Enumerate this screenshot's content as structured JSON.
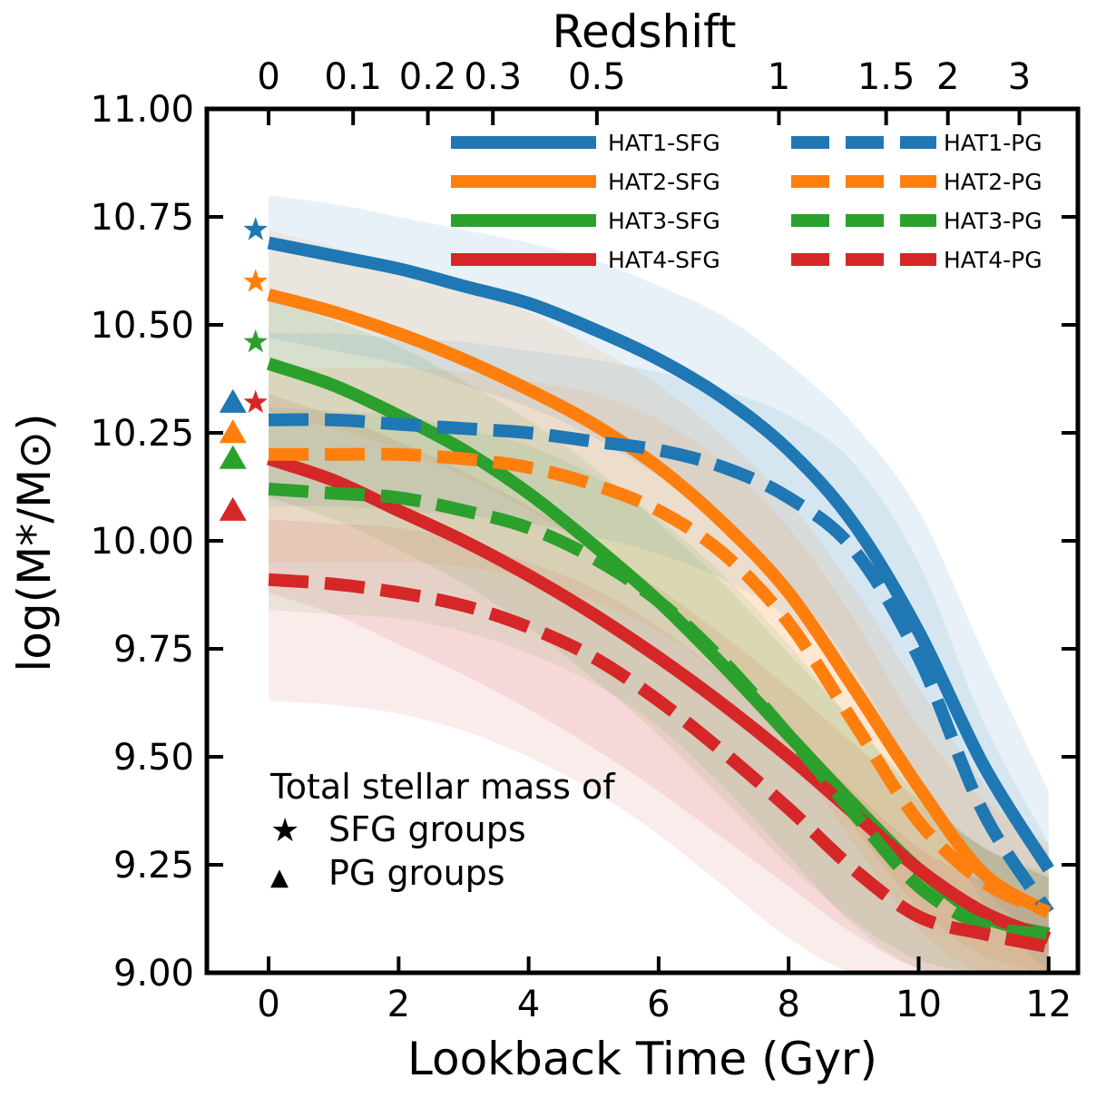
{
  "chart_data": {
    "type": "line",
    "title": "",
    "xlabel": "Lookback Time (Gyr)",
    "ylabel": "log(M*/M⊙)",
    "top_axis_label": "Redshift",
    "xlim": [
      -0.95,
      12.45
    ],
    "ylim": [
      9.0,
      11.0
    ],
    "x_ticks": [
      0,
      2,
      4,
      6,
      8,
      10,
      12
    ],
    "y_ticks": [
      9.0,
      9.25,
      9.5,
      9.75,
      10.0,
      10.25,
      10.5,
      10.75,
      11.0
    ],
    "x_tick_labels": [
      "0",
      "2",
      "4",
      "6",
      "8",
      "10",
      "12"
    ],
    "y_tick_labels": [
      "9.00",
      "9.25",
      "9.50",
      "9.75",
      "10.00",
      "10.25",
      "10.50",
      "10.75",
      "11.00"
    ],
    "top_ticks": [
      {
        "label": "0",
        "t": 0.0
      },
      {
        "label": "0.1",
        "t": 1.3
      },
      {
        "label": "0.2",
        "t": 2.45
      },
      {
        "label": "0.3",
        "t": 3.45
      },
      {
        "label": "0.5",
        "t": 5.05
      },
      {
        "label": "1",
        "t": 7.85
      },
      {
        "label": "1.5",
        "t": 9.5
      },
      {
        "label": "2",
        "t": 10.45
      },
      {
        "label": "3",
        "t": 11.55
      }
    ],
    "grid": false,
    "legend_placement": "top-right",
    "x": [
      0,
      1,
      2,
      3,
      4,
      5,
      6,
      7,
      8,
      9,
      10,
      11,
      12
    ],
    "series": [
      {
        "name": "HAT1-SFG",
        "style": "solid",
        "color": "#1f77b4",
        "values": [
          10.69,
          10.66,
          10.63,
          10.59,
          10.55,
          10.49,
          10.42,
          10.33,
          10.21,
          10.04,
          9.79,
          9.48,
          9.24
        ],
        "band_lower": [
          10.47,
          10.44,
          10.41,
          10.36,
          10.31,
          10.24,
          10.15,
          10.04,
          9.9,
          9.7,
          9.44,
          9.2,
          9.05
        ],
        "band_upper": [
          10.8,
          10.78,
          10.75,
          10.72,
          10.69,
          10.65,
          10.59,
          10.52,
          10.41,
          10.27,
          10.07,
          9.74,
          9.42
        ]
      },
      {
        "name": "HAT2-SFG",
        "style": "solid",
        "color": "#ff7f0e",
        "values": [
          10.57,
          10.53,
          10.48,
          10.42,
          10.35,
          10.27,
          10.17,
          10.04,
          9.88,
          9.66,
          9.43,
          9.23,
          9.14
        ],
        "band_lower": [
          10.3,
          10.26,
          10.21,
          10.15,
          10.07,
          9.98,
          9.86,
          9.72,
          9.54,
          9.34,
          9.15,
          9.04,
          9.0
        ],
        "band_upper": [
          10.72,
          10.68,
          10.64,
          10.59,
          10.53,
          10.45,
          10.36,
          10.24,
          10.09,
          9.89,
          9.66,
          9.44,
          9.28
        ]
      },
      {
        "name": "HAT3-SFG",
        "style": "solid",
        "color": "#2ca02c",
        "values": [
          10.41,
          10.36,
          10.29,
          10.21,
          10.11,
          9.99,
          9.86,
          9.71,
          9.55,
          9.39,
          9.24,
          9.13,
          9.09
        ],
        "band_lower": [
          10.1,
          10.05,
          9.98,
          9.9,
          9.8,
          9.68,
          9.55,
          9.4,
          9.25,
          9.12,
          9.03,
          9.0,
          9.0
        ],
        "band_upper": [
          10.56,
          10.51,
          10.45,
          10.37,
          10.28,
          10.17,
          10.04,
          9.9,
          9.74,
          9.58,
          9.42,
          9.29,
          9.22
        ]
      },
      {
        "name": "HAT4-SFG",
        "style": "solid",
        "color": "#d62728",
        "values": [
          10.19,
          10.14,
          10.07,
          10.0,
          9.92,
          9.83,
          9.73,
          9.62,
          9.5,
          9.37,
          9.24,
          9.14,
          9.08
        ],
        "band_lower": [
          9.88,
          9.83,
          9.76,
          9.69,
          9.61,
          9.52,
          9.42,
          9.31,
          9.2,
          9.09,
          9.01,
          9.0,
          9.0
        ],
        "band_upper": [
          10.34,
          10.29,
          10.23,
          10.16,
          10.08,
          9.99,
          9.89,
          9.78,
          9.66,
          9.53,
          9.4,
          9.29,
          9.22
        ]
      },
      {
        "name": "HAT1-PG",
        "style": "dashed",
        "color": "#1f77b4",
        "values": [
          10.28,
          10.28,
          10.27,
          10.26,
          10.25,
          10.23,
          10.21,
          10.17,
          10.1,
          9.98,
          9.73,
          9.37,
          9.14
        ],
        "band_lower": [
          10.08,
          10.08,
          10.07,
          10.06,
          10.04,
          10.01,
          9.97,
          9.91,
          9.82,
          9.68,
          9.44,
          9.16,
          9.0
        ],
        "band_upper": [
          10.48,
          10.48,
          10.47,
          10.46,
          10.44,
          10.42,
          10.39,
          10.35,
          10.29,
          10.18,
          9.95,
          9.58,
          9.3
        ]
      },
      {
        "name": "HAT2-PG",
        "style": "dashed",
        "color": "#ff7f0e",
        "values": [
          10.2,
          10.2,
          10.2,
          10.19,
          10.17,
          10.13,
          10.07,
          9.97,
          9.81,
          9.58,
          9.35,
          9.21,
          9.14
        ],
        "band_lower": [
          9.95,
          9.95,
          9.95,
          9.94,
          9.91,
          9.86,
          9.79,
          9.68,
          9.52,
          9.3,
          9.1,
          9.0,
          9.0
        ],
        "band_upper": [
          10.4,
          10.4,
          10.4,
          10.39,
          10.37,
          10.34,
          10.28,
          10.18,
          10.03,
          9.82,
          9.57,
          9.4,
          9.3
        ]
      },
      {
        "name": "HAT3-PG",
        "style": "dashed",
        "color": "#2ca02c",
        "values": [
          10.12,
          10.11,
          10.1,
          10.07,
          10.03,
          9.96,
          9.86,
          9.72,
          9.55,
          9.37,
          9.2,
          9.11,
          9.09
        ],
        "band_lower": [
          9.84,
          9.83,
          9.82,
          9.79,
          9.74,
          9.67,
          9.57,
          9.43,
          9.27,
          9.11,
          9.01,
          9.0,
          9.0
        ],
        "band_upper": [
          10.31,
          10.3,
          10.29,
          10.26,
          10.22,
          10.15,
          10.05,
          9.92,
          9.76,
          9.58,
          9.41,
          9.29,
          9.23
        ]
      },
      {
        "name": "HAT4-PG",
        "style": "dashed",
        "color": "#d62728",
        "values": [
          9.91,
          9.9,
          9.88,
          9.85,
          9.8,
          9.73,
          9.63,
          9.51,
          9.38,
          9.24,
          9.13,
          9.09,
          9.06
        ],
        "band_lower": [
          9.63,
          9.62,
          9.6,
          9.56,
          9.5,
          9.42,
          9.32,
          9.2,
          9.08,
          9.0,
          9.0,
          9.0,
          9.0
        ],
        "band_upper": [
          10.05,
          10.04,
          10.03,
          10.0,
          9.95,
          9.89,
          9.8,
          9.69,
          9.56,
          9.42,
          9.29,
          9.21,
          9.15
        ]
      }
    ],
    "total_stellar_mass_markers": {
      "sfg": [
        {
          "group": "HAT1",
          "x": -0.2,
          "y": 10.72,
          "color": "#1f77b4"
        },
        {
          "group": "HAT2",
          "x": -0.2,
          "y": 10.6,
          "color": "#ff7f0e"
        },
        {
          "group": "HAT3",
          "x": -0.2,
          "y": 10.46,
          "color": "#2ca02c"
        },
        {
          "group": "HAT4",
          "x": -0.2,
          "y": 10.32,
          "color": "#d62728"
        }
      ],
      "pg": [
        {
          "group": "HAT1",
          "x": -0.55,
          "y": 10.32,
          "color": "#1f77b4"
        },
        {
          "group": "HAT2",
          "x": -0.55,
          "y": 10.25,
          "color": "#ff7f0e"
        },
        {
          "group": "HAT3",
          "x": -0.55,
          "y": 10.19,
          "color": "#2ca02c"
        },
        {
          "group": "HAT4",
          "x": -0.55,
          "y": 10.07,
          "color": "#d62728"
        }
      ]
    },
    "annotation": {
      "heading": "Total stellar mass of",
      "sfg_label": "SFG groups",
      "pg_label": "PG groups",
      "star_glyph": "★",
      "triangle_glyph": "▲"
    }
  }
}
